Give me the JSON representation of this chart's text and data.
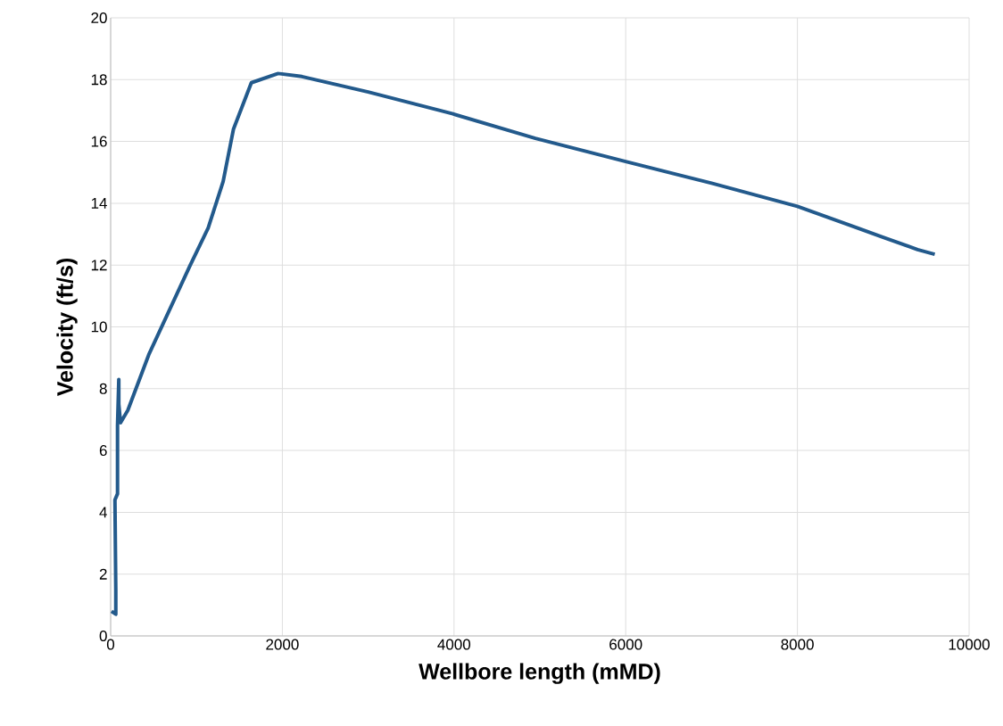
{
  "chart_data": {
    "type": "line",
    "xlabel": "Wellbore length (mMD)",
    "ylabel": "Velocity (ft/s)",
    "x": [
      10,
      60,
      60,
      50,
      80,
      80,
      95,
      95,
      115,
      200,
      444,
      928,
      1136,
      1310,
      1431,
      1639,
      1951,
      2228,
      3000,
      3978,
      4948,
      6000,
      7000,
      8000,
      9000,
      9400,
      9600
    ],
    "series": [
      {
        "color": "#235a8c",
        "values": [
          0.8,
          0.7,
          1.5,
          4.4,
          4.6,
          6.8,
          8.3,
          7.5,
          6.9,
          7.3,
          9.1,
          12.0,
          13.2,
          14.7,
          16.4,
          17.9,
          18.2,
          18.1,
          17.6,
          16.9,
          16.1,
          15.35,
          14.65,
          13.9,
          12.9,
          12.5,
          12.35
        ]
      }
    ],
    "xlim": [
      0,
      10000
    ],
    "xticks": [
      0,
      2000,
      4000,
      6000,
      8000,
      10000
    ],
    "ylim": [
      0,
      20
    ],
    "yticks": [
      0,
      2,
      4,
      6,
      8,
      10,
      12,
      14,
      16,
      18,
      20
    ],
    "grid": true,
    "marker": "none",
    "line_style": "solid"
  }
}
